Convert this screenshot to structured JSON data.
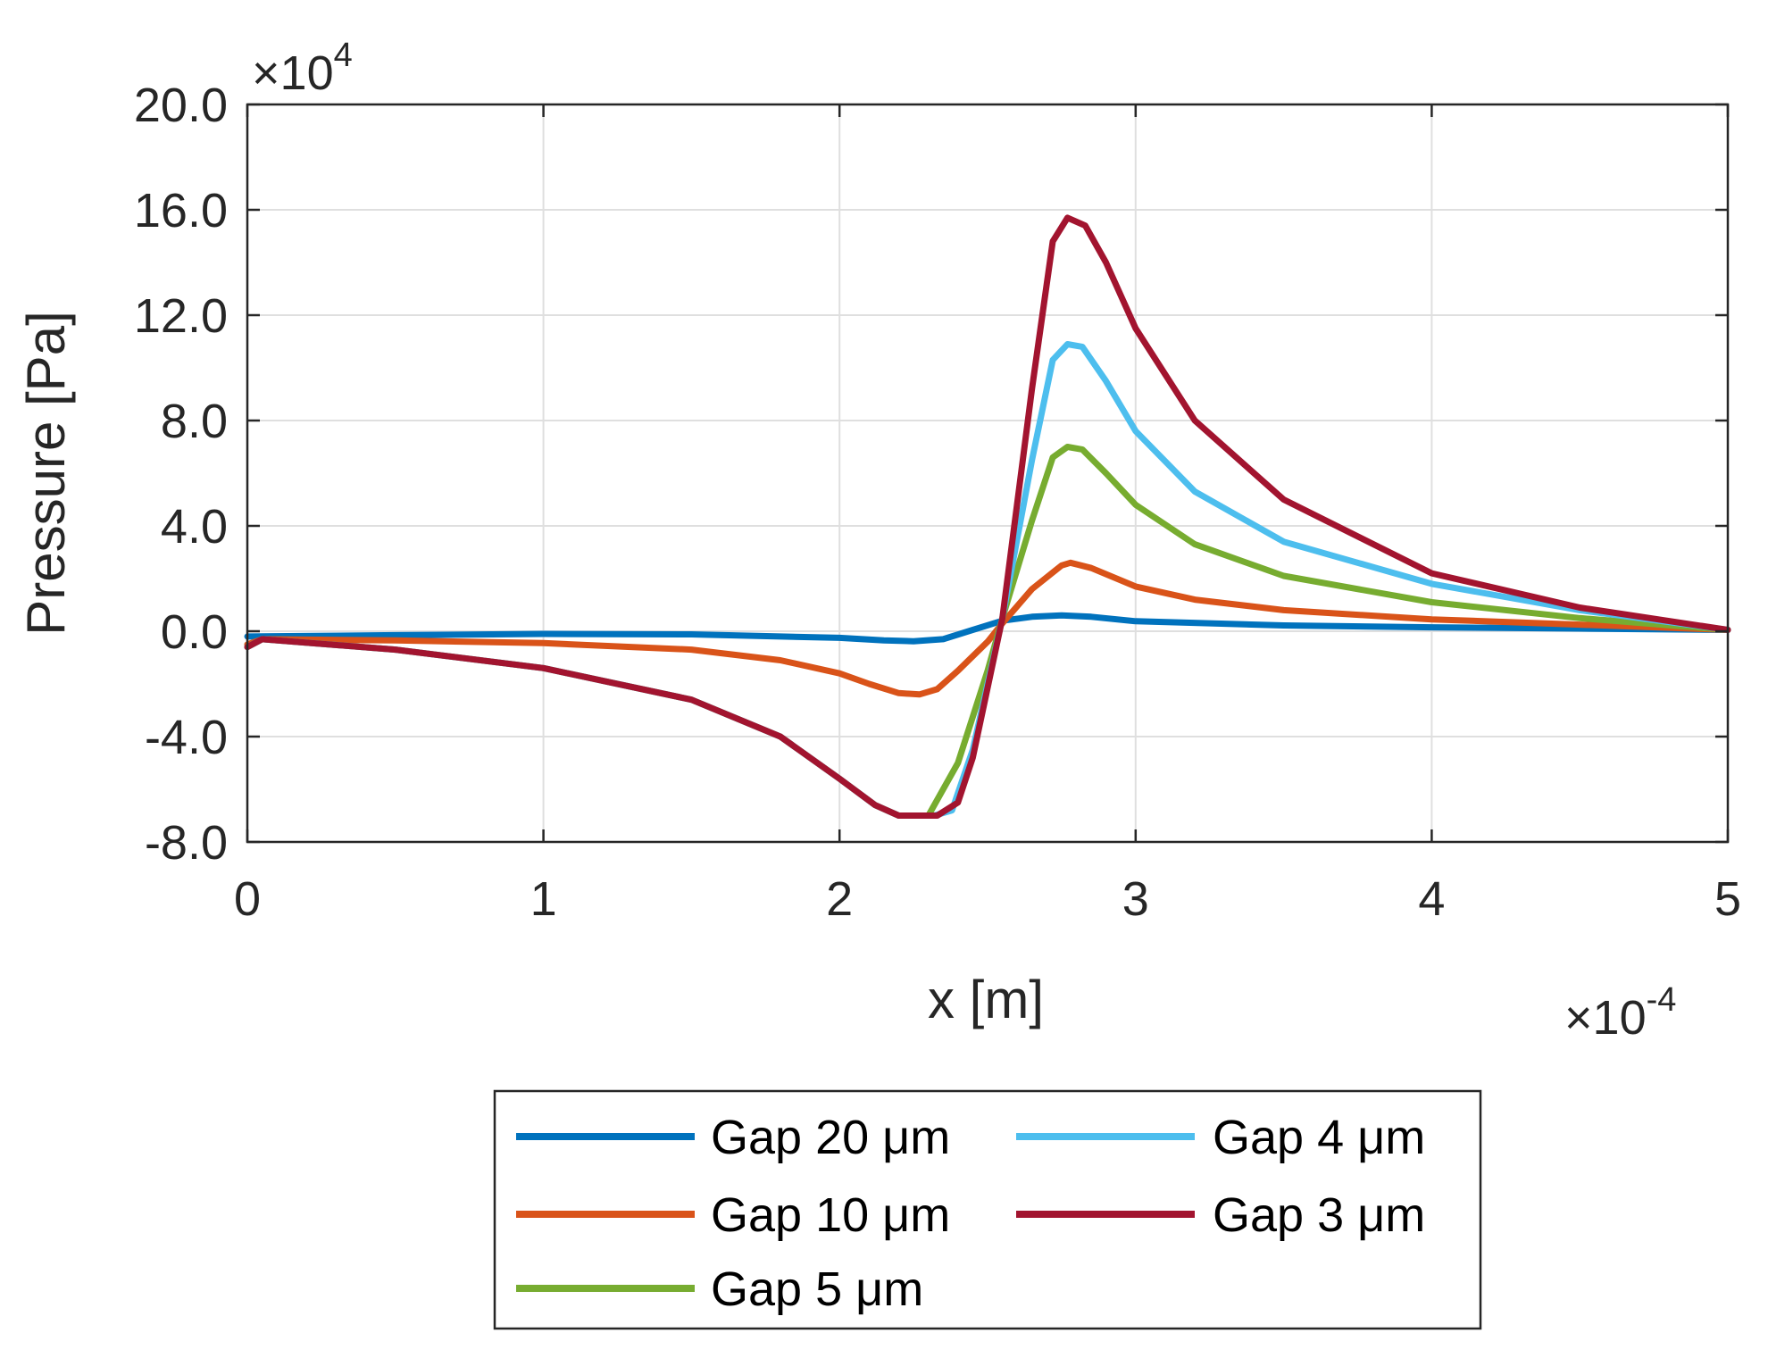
{
  "chart_data": {
    "type": "line",
    "title": "",
    "xlabel": "x [m]",
    "ylabel": "Pressure [Pa]",
    "x_exponent_label": "×10",
    "x_exponent_power": "-4",
    "y_exponent_label": "×10",
    "y_exponent_power": "4",
    "xlim": [
      0,
      5
    ],
    "ylim": [
      -8,
      20
    ],
    "x_ticks": [
      0,
      1,
      2,
      3,
      4,
      5
    ],
    "x_tick_labels": [
      "0",
      "1",
      "2",
      "3",
      "4",
      "5"
    ],
    "y_ticks": [
      -8,
      -4,
      0,
      4,
      8,
      12,
      16,
      20
    ],
    "y_tick_labels": [
      "-8.0",
      "-4.0",
      "0.0",
      "4.0",
      "8.0",
      "12.0",
      "16.0",
      "20.0"
    ],
    "grid": true,
    "legend_position": "bottom-outside",
    "series": [
      {
        "name": "Gap 20 μm",
        "color": "#0072BD",
        "points": [
          [
            0,
            -0.2
          ],
          [
            0.5,
            -0.15
          ],
          [
            1.0,
            -0.1
          ],
          [
            1.5,
            -0.12
          ],
          [
            2.0,
            -0.25
          ],
          [
            2.15,
            -0.35
          ],
          [
            2.25,
            -0.38
          ],
          [
            2.35,
            -0.3
          ],
          [
            2.45,
            0.05
          ],
          [
            2.55,
            0.4
          ],
          [
            2.65,
            0.55
          ],
          [
            2.75,
            0.6
          ],
          [
            2.85,
            0.55
          ],
          [
            3.0,
            0.38
          ],
          [
            3.5,
            0.22
          ],
          [
            4.0,
            0.15
          ],
          [
            4.5,
            0.1
          ],
          [
            5.0,
            0.05
          ]
        ]
      },
      {
        "name": "Gap 10 μm",
        "color": "#D95319",
        "points": [
          [
            0,
            -0.5
          ],
          [
            0.05,
            -0.3
          ],
          [
            0.5,
            -0.35
          ],
          [
            1.0,
            -0.45
          ],
          [
            1.5,
            -0.7
          ],
          [
            1.8,
            -1.1
          ],
          [
            2.0,
            -1.6
          ],
          [
            2.1,
            -2.0
          ],
          [
            2.2,
            -2.35
          ],
          [
            2.27,
            -2.4
          ],
          [
            2.33,
            -2.2
          ],
          [
            2.4,
            -1.5
          ],
          [
            2.5,
            -0.4
          ],
          [
            2.55,
            0.3
          ],
          [
            2.65,
            1.6
          ],
          [
            2.75,
            2.5
          ],
          [
            2.78,
            2.6
          ],
          [
            2.85,
            2.4
          ],
          [
            3.0,
            1.7
          ],
          [
            3.2,
            1.2
          ],
          [
            3.5,
            0.8
          ],
          [
            4.0,
            0.45
          ],
          [
            4.5,
            0.25
          ],
          [
            5.0,
            0.05
          ]
        ]
      },
      {
        "name": "Gap 5 μm",
        "color": "#77AC30",
        "points": [
          [
            0,
            -0.6
          ],
          [
            0.05,
            -0.3
          ],
          [
            0.5,
            -0.7
          ],
          [
            1.0,
            -1.4
          ],
          [
            1.5,
            -2.6
          ],
          [
            1.8,
            -4.0
          ],
          [
            2.0,
            -5.6
          ],
          [
            2.12,
            -6.6
          ],
          [
            2.2,
            -7.0
          ],
          [
            2.3,
            -7.0
          ],
          [
            2.4,
            -5.0
          ],
          [
            2.5,
            -1.5
          ],
          [
            2.55,
            0.5
          ],
          [
            2.65,
            4.2
          ],
          [
            2.72,
            6.6
          ],
          [
            2.77,
            7.0
          ],
          [
            2.82,
            6.9
          ],
          [
            2.9,
            6.0
          ],
          [
            3.0,
            4.8
          ],
          [
            3.2,
            3.3
          ],
          [
            3.5,
            2.1
          ],
          [
            4.0,
            1.1
          ],
          [
            4.5,
            0.5
          ],
          [
            5.0,
            0.05
          ]
        ]
      },
      {
        "name": "Gap 4 μm",
        "color": "#4DBEEE",
        "points": [
          [
            0,
            -0.6
          ],
          [
            0.05,
            -0.3
          ],
          [
            0.5,
            -0.7
          ],
          [
            1.0,
            -1.4
          ],
          [
            1.5,
            -2.6
          ],
          [
            1.8,
            -4.0
          ],
          [
            2.0,
            -5.6
          ],
          [
            2.12,
            -6.6
          ],
          [
            2.2,
            -7.0
          ],
          [
            2.32,
            -7.0
          ],
          [
            2.38,
            -6.8
          ],
          [
            2.45,
            -4.5
          ],
          [
            2.55,
            0.5
          ],
          [
            2.65,
            6.5
          ],
          [
            2.72,
            10.3
          ],
          [
            2.77,
            10.9
          ],
          [
            2.82,
            10.8
          ],
          [
            2.9,
            9.5
          ],
          [
            3.0,
            7.6
          ],
          [
            3.2,
            5.3
          ],
          [
            3.5,
            3.4
          ],
          [
            4.0,
            1.8
          ],
          [
            4.5,
            0.8
          ],
          [
            5.0,
            0.05
          ]
        ]
      },
      {
        "name": "Gap 3 μm",
        "color": "#A2142F",
        "points": [
          [
            0,
            -0.6
          ],
          [
            0.05,
            -0.3
          ],
          [
            0.5,
            -0.7
          ],
          [
            1.0,
            -1.4
          ],
          [
            1.5,
            -2.6
          ],
          [
            1.8,
            -4.0
          ],
          [
            2.0,
            -5.6
          ],
          [
            2.12,
            -6.6
          ],
          [
            2.2,
            -7.0
          ],
          [
            2.33,
            -7.0
          ],
          [
            2.4,
            -6.5
          ],
          [
            2.45,
            -4.8
          ],
          [
            2.55,
            0.5
          ],
          [
            2.65,
            9.2
          ],
          [
            2.72,
            14.8
          ],
          [
            2.77,
            15.7
          ],
          [
            2.83,
            15.4
          ],
          [
            2.9,
            14.0
          ],
          [
            3.0,
            11.5
          ],
          [
            3.2,
            8.0
          ],
          [
            3.5,
            5.0
          ],
          [
            4.0,
            2.2
          ],
          [
            4.5,
            0.9
          ],
          [
            5.0,
            0.05
          ]
        ]
      }
    ]
  },
  "legend": {
    "items": [
      {
        "label": "Gap 20 μm",
        "color": "#0072BD"
      },
      {
        "label": "Gap 4  μm",
        "color": "#4DBEEE"
      },
      {
        "label": "Gap 10 μm",
        "color": "#D95319"
      },
      {
        "label": "Gap 3  μm",
        "color": "#A2142F"
      },
      {
        "label": "Gap 5 μm",
        "color": "#77AC30"
      }
    ]
  }
}
